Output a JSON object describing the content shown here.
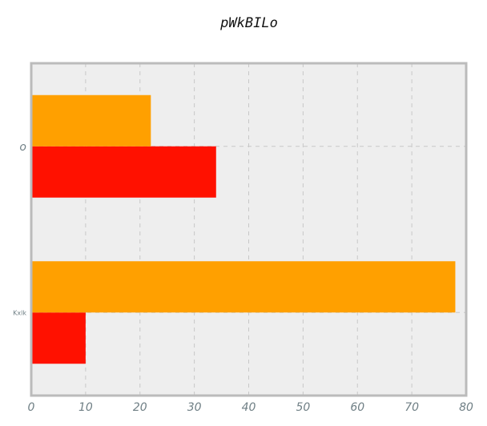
{
  "chart_data": {
    "type": "bar",
    "orientation": "horizontal",
    "title": "pWkBILo",
    "xlabel": "",
    "ylabel": "",
    "categories": [
      "Kxlk",
      "o"
    ],
    "series": [
      {
        "color": "#ff1100",
        "values": [
          10,
          34
        ]
      },
      {
        "color": "#ffa000",
        "values": [
          78,
          22
        ]
      }
    ],
    "xlim": [
      0,
      80
    ],
    "xticks": [
      0,
      10,
      20,
      30,
      40,
      50,
      60,
      70,
      80
    ],
    "grid": true,
    "legend": "none",
    "plot_background": "#eeeeee",
    "frame_color": "#bbbbbb"
  }
}
